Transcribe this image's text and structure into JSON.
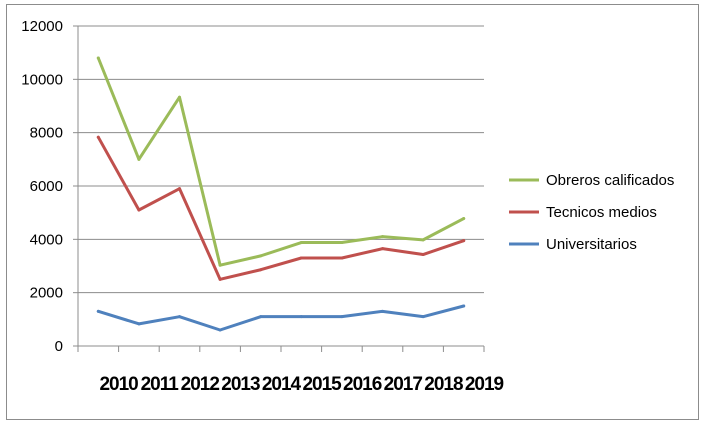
{
  "chart_data": {
    "type": "line",
    "title": "",
    "xlabel": "",
    "ylabel": "",
    "categories": [
      "2010",
      "2011",
      "2012",
      "2013",
      "2014",
      "2015",
      "2016",
      "2017",
      "2018",
      "2019"
    ],
    "ylim": [
      0,
      12000
    ],
    "yticks": [
      "0",
      "2000",
      "4000",
      "6000",
      "8000",
      "10000",
      "12000"
    ],
    "grid": true,
    "legend_position": "right",
    "series": [
      {
        "name": "Obreros calificados",
        "color": "#9bbb59",
        "values": [
          10800,
          7000,
          9330,
          3030,
          3380,
          3880,
          3880,
          4100,
          3980,
          4780
        ]
      },
      {
        "name": "Tecnicos medios",
        "color": "#c0504d",
        "values": [
          7830,
          5100,
          5900,
          2500,
          2860,
          3300,
          3300,
          3650,
          3430,
          3950
        ]
      },
      {
        "name": "Universitarios",
        "color": "#4f81bd",
        "values": [
          1300,
          830,
          1100,
          600,
          1100,
          1100,
          1100,
          1300,
          1100,
          1500
        ]
      }
    ]
  }
}
